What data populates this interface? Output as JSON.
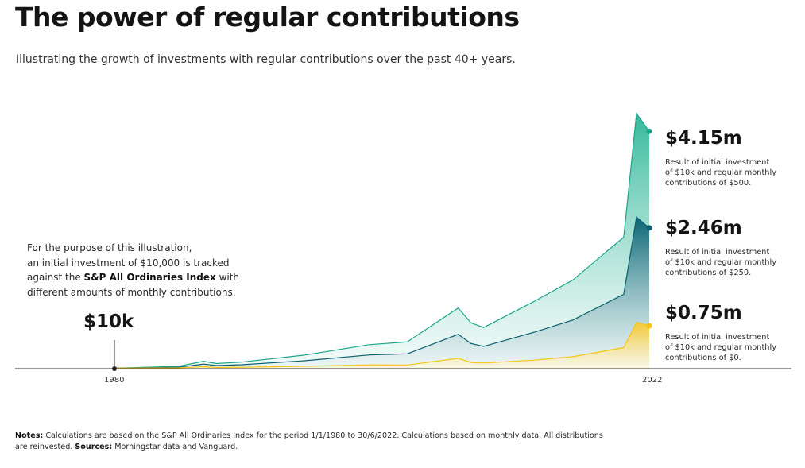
{
  "title": "The power of regular contributions",
  "subtitle": "Illustrating the growth of investments with regular contributions over the past 40+ years.",
  "intro": {
    "line1": "For the purpose of this illustration,",
    "line2": "an initial investment of $10,000 is tracked",
    "line3_pre": "against the ",
    "line3_bold": "S&P All Ordinaries Index",
    "line3_post": " with",
    "line4": "different amounts of monthly contributions."
  },
  "start_label": "$10k",
  "results": [
    {
      "value": "$4.15m",
      "line1": "Result of initial investment",
      "line2": "of $10k and regular monthly",
      "line3": "contributions of $500."
    },
    {
      "value": "$2.46m",
      "line1": "Result of initial investment",
      "line2": "of $10k and regular monthly",
      "line3": "contributions of $250."
    },
    {
      "value": "$0.75m",
      "line1": "Result of initial investment",
      "line2": "of $10k and regular monthly",
      "line3": "contributions of $0."
    }
  ],
  "axis": {
    "start": "1980",
    "end": "2022"
  },
  "notes": {
    "label": "Notes:",
    "text": " Calculations are based on the S&P All Ordinaries Index for the period 1/1/1980 to 30/6/2022. Calculations based on monthly data. All distributions are reinvested. ",
    "sources_label": "Sources:",
    "sources_text": " Morningstar data and Vanguard."
  },
  "colors": {
    "series_500": "#1aa58a",
    "series_250": "#0b5f6e",
    "series_0": "#f5c518",
    "baseline": "#333333"
  },
  "chart_data": {
    "type": "area",
    "x": [
      1980,
      1985,
      1987,
      1988,
      1990,
      1995,
      2000,
      2003,
      2007,
      2008,
      2009,
      2013,
      2016,
      2020,
      2021,
      2022
    ],
    "series": [
      {
        "values": [
          10000,
          40000,
          130000,
          90000,
          115000,
          240000,
          420000,
          470000,
          1060000,
          800000,
          720000,
          1180000,
          1550000,
          2300000,
          4460000,
          4150000
        ]
      },
      {
        "values": [
          10000,
          25000,
          80000,
          55000,
          70000,
          140000,
          240000,
          260000,
          600000,
          440000,
          390000,
          640000,
          850000,
          1300000,
          2650000,
          2460000
        ]
      },
      {
        "values": [
          10000,
          14000,
          35000,
          22000,
          25000,
          42000,
          66000,
          65000,
          180000,
          110000,
          100000,
          150000,
          210000,
          370000,
          810000,
          750000
        ]
      }
    ],
    "xlim": [
      1980,
      2022.5
    ],
    "ylim": [
      0,
      4500000
    ]
  }
}
